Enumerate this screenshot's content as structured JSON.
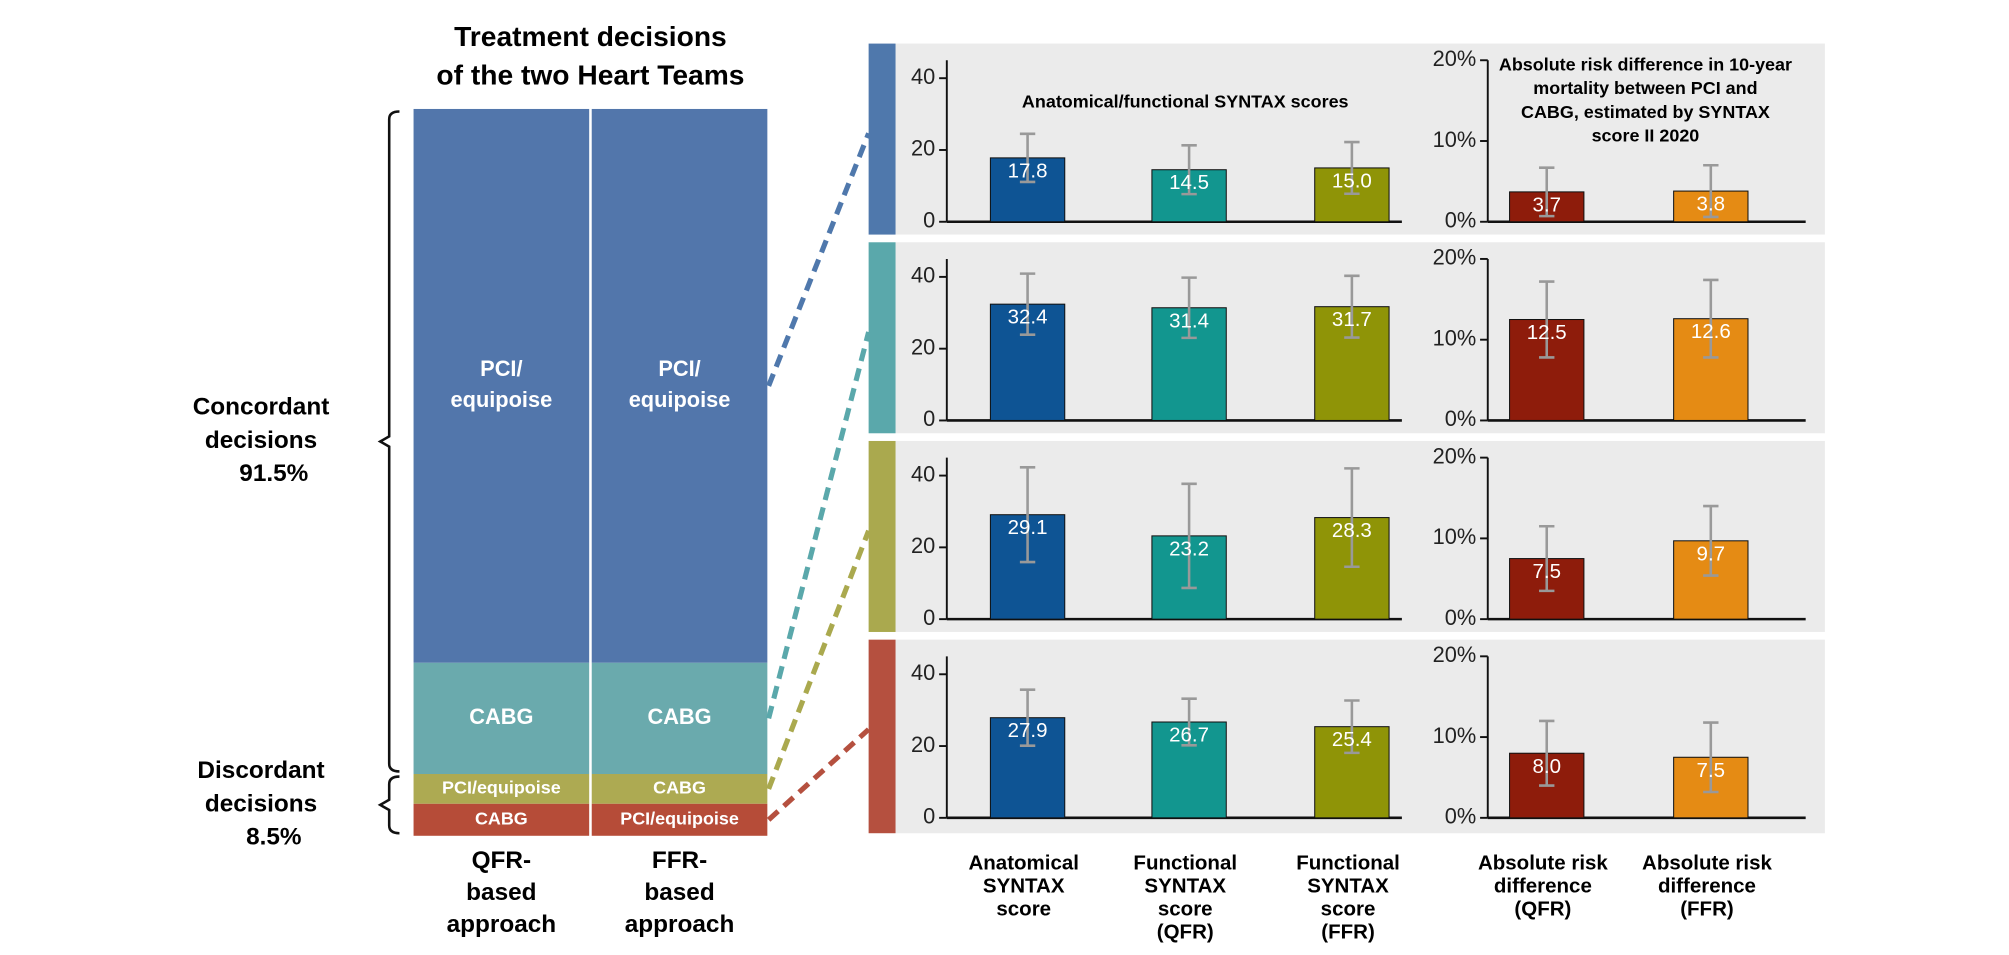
{
  "chart_data": [
    {
      "type": "stacked_column",
      "title": [
        "Treatment decisions",
        "of the two Heart Teams"
      ],
      "columns": [
        {
          "label": [
            "QFR-",
            "based",
            "approach"
          ],
          "segments": [
            {
              "label": [
                "PCI/",
                "equipoise"
              ],
              "value": 76.2,
              "color": "#5276ab"
            },
            {
              "label": [
                "CABG"
              ],
              "value": 15.3,
              "color": "#6aaaad"
            },
            {
              "label": [
                "PCI/equipoise"
              ],
              "value": 4.1,
              "color": "#adaa52"
            },
            {
              "label": [
                "CABG"
              ],
              "value": 4.4,
              "color": "#b64c38"
            }
          ]
        },
        {
          "label": [
            "FFR-",
            "based",
            "approach"
          ],
          "segments": [
            {
              "label": [
                "PCI/",
                "equipoise"
              ],
              "value": 76.2,
              "color": "#5276ab"
            },
            {
              "label": [
                "CABG"
              ],
              "value": 15.3,
              "color": "#6aaaad"
            },
            {
              "label": [
                "CABG"
              ],
              "value": 4.1,
              "color": "#adaa52"
            },
            {
              "label": [
                "PCI/equipoise"
              ],
              "value": 4.4,
              "color": "#b64c38"
            }
          ]
        }
      ],
      "groups": [
        {
          "label": [
            "Concordant",
            "decisions"
          ],
          "value": 91.5,
          "value_label": "91.5%"
        },
        {
          "label": [
            "Discordant",
            "decisions"
          ],
          "value": 8.5,
          "value_label": "8.5%"
        }
      ]
    },
    {
      "type": "bar",
      "row_colors": [
        "#4f78ac",
        "#5aa8ab",
        "#aaa94e",
        "#b5503f"
      ],
      "panels": [
        {
          "title": [
            "Anatomical/functional SYNTAX scores"
          ],
          "categories": [
            [
              "Anatomical",
              "SYNTAX",
              "score"
            ],
            [
              "Functional",
              "SYNTAX",
              "score",
              "(QFR)"
            ],
            [
              "Functional",
              "SYNTAX",
              "score",
              "(FFR)"
            ]
          ],
          "colors": [
            "#0e5494",
            "#12968f",
            "#8f9407"
          ],
          "ylim": [
            0,
            45
          ],
          "yticks": [
            0,
            20,
            40
          ],
          "rows": [
            {
              "values": [
                17.8,
                14.5,
                15.0
              ],
              "value_labels": [
                "17.8",
                "14.5",
                "15.0"
              ],
              "errors": [
                6.7,
                6.8,
                7.2
              ]
            },
            {
              "values": [
                32.4,
                31.4,
                31.7
              ],
              "value_labels": [
                "32.4",
                "31.4",
                "31.7"
              ],
              "errors": [
                8.5,
                8.4,
                8.6
              ]
            },
            {
              "values": [
                29.1,
                23.2,
                28.3
              ],
              "value_labels": [
                "29.1",
                "23.2",
                "28.3"
              ],
              "errors": [
                13.2,
                14.5,
                13.7
              ]
            },
            {
              "values": [
                27.9,
                26.7,
                25.4
              ],
              "value_labels": [
                "27.9",
                "26.7",
                "25.4"
              ],
              "errors": [
                7.8,
                6.5,
                7.3
              ]
            }
          ]
        },
        {
          "title": [
            "Absolute risk difference in 10-year",
            "mortality between PCI and",
            "CABG, estimated by SYNTAX",
            "score II 2020"
          ],
          "categories": [
            [
              "Absolute risk",
              "difference",
              "(QFR)"
            ],
            [
              "Absolute risk",
              "difference",
              "(FFR)"
            ]
          ],
          "colors": [
            "#8e1c0b",
            "#e58b14"
          ],
          "ylim": [
            0,
            20
          ],
          "yticks": [
            {
              "value": 0,
              "label": "0%"
            },
            {
              "value": 10,
              "label": "10%"
            },
            {
              "value": 20,
              "label": "20%"
            }
          ],
          "rows": [
            {
              "values": [
                3.7,
                3.8
              ],
              "value_labels": [
                "3.7",
                "3.8"
              ],
              "errors": [
                3.0,
                3.2
              ]
            },
            {
              "values": [
                12.5,
                12.6
              ],
              "value_labels": [
                "12.5",
                "12.6"
              ],
              "errors": [
                4.7,
                4.8
              ]
            },
            {
              "values": [
                7.5,
                9.7
              ],
              "value_labels": [
                "7.5",
                "9.7"
              ],
              "errors": [
                4.0,
                4.3
              ]
            },
            {
              "values": [
                8.0,
                7.5
              ],
              "value_labels": [
                "8.0",
                "7.5"
              ],
              "errors": [
                4.0,
                4.3
              ]
            }
          ]
        }
      ]
    }
  ]
}
